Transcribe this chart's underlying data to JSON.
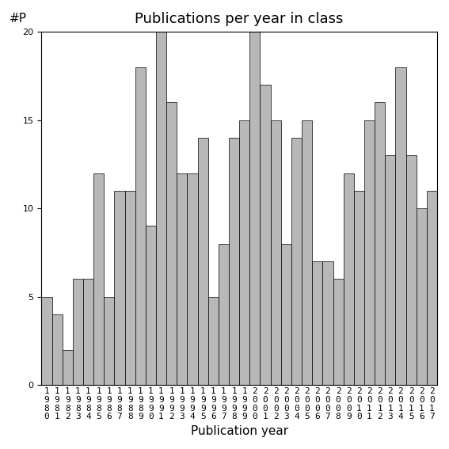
{
  "title": "Publications per year in class",
  "xlabel": "Publication year",
  "ylabel": "#P",
  "years": [
    1980,
    1981,
    1982,
    1983,
    1984,
    1985,
    1986,
    1987,
    1988,
    1989,
    1990,
    1991,
    1992,
    1993,
    1994,
    1995,
    1996,
    1997,
    1998,
    1999,
    2000,
    2001,
    2002,
    2003,
    2004,
    2005,
    2006,
    2007,
    2008,
    2009,
    2010,
    2011,
    2012,
    2013,
    2014,
    2015,
    2016,
    2017
  ],
  "values": [
    5,
    4,
    2,
    6,
    6,
    12,
    5,
    11,
    11,
    18,
    9,
    20,
    16,
    12,
    12,
    14,
    5,
    8,
    14,
    15,
    20,
    17,
    15,
    8,
    14,
    15,
    7,
    7,
    6,
    12,
    11,
    15,
    16,
    13,
    18,
    13,
    10,
    11
  ],
  "bar_color": "#b8b8b8",
  "bar_edgecolor": "#000000",
  "ylim": [
    0,
    20
  ],
  "yticks": [
    0,
    5,
    10,
    15,
    20
  ],
  "background_color": "#ffffff",
  "title_fontsize": 13,
  "axis_label_fontsize": 11,
  "tick_fontsize": 8
}
